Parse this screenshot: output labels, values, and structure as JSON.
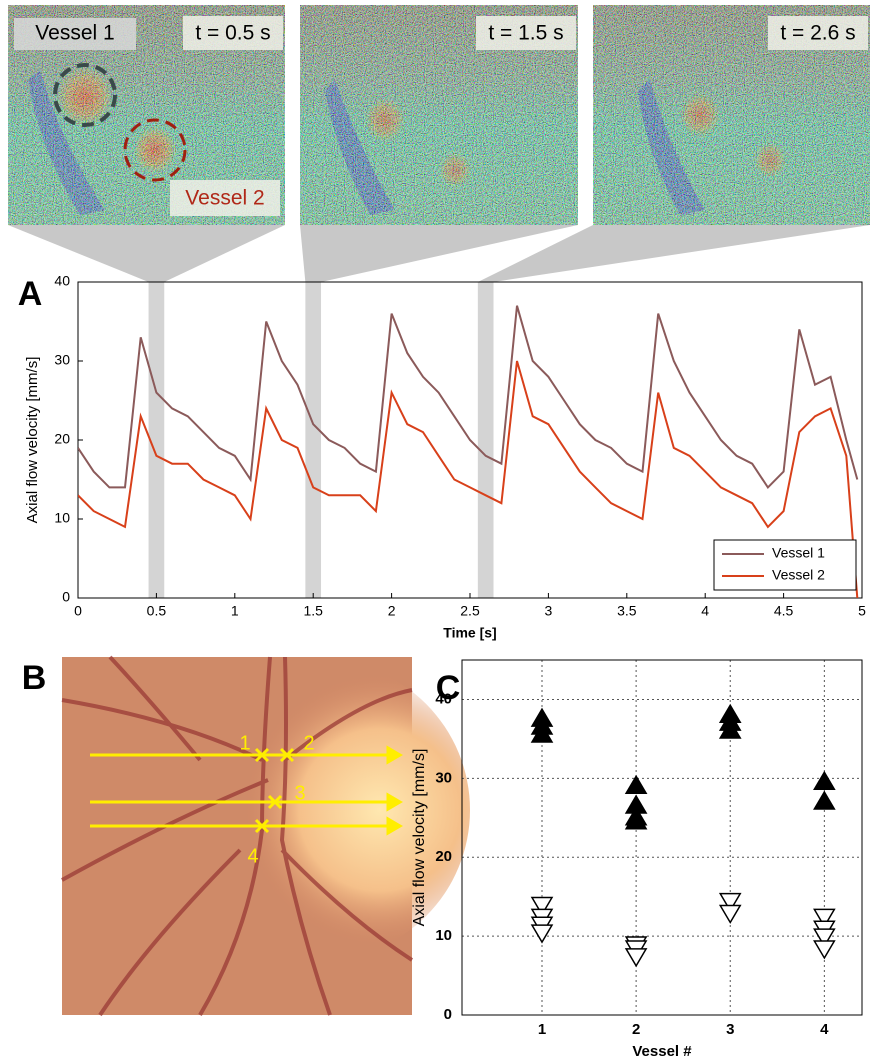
{
  "panel_labels": [
    "A",
    "B",
    "C"
  ],
  "thumbnails": {
    "time_labels": [
      "t = 0.5 s",
      "t = 1.5 s",
      "t = 2.6 s"
    ],
    "vessel_labels": [
      "Vessel 1",
      "Vessel 2"
    ]
  },
  "fundus": {
    "markers": [
      "1",
      "2",
      "3",
      "4"
    ]
  },
  "chart_data": [
    {
      "type": "line",
      "xlabel": "Time [s]",
      "ylabel": "Axial flow velocity [mm/s]",
      "x": [
        0,
        0.1,
        0.2,
        0.3,
        0.4,
        0.5,
        0.6,
        0.7,
        0.8,
        0.9,
        1.0,
        1.1,
        1.2,
        1.3,
        1.4,
        1.5,
        1.6,
        1.7,
        1.8,
        1.9,
        2.0,
        2.1,
        2.2,
        2.3,
        2.4,
        2.5,
        2.6,
        2.7,
        2.8,
        2.9,
        3.0,
        3.1,
        3.2,
        3.3,
        3.4,
        3.5,
        3.6,
        3.7,
        3.8,
        3.9,
        4.0,
        4.1,
        4.2,
        4.3,
        4.4,
        4.5,
        4.6,
        4.7,
        4.8,
        4.9,
        4.97
      ],
      "series": [
        {
          "name": "Vessel 1",
          "color": "#8b5a5a",
          "values": [
            19,
            16,
            14,
            14,
            33,
            26,
            24,
            23,
            21,
            19,
            18,
            15,
            35,
            30,
            27,
            22,
            20,
            19,
            17,
            16,
            36,
            31,
            28,
            26,
            23,
            20,
            18,
            17,
            37,
            30,
            28,
            25,
            22,
            20,
            19,
            17,
            16,
            36,
            30,
            26,
            23,
            20,
            18,
            17,
            14,
            16,
            34,
            27,
            28,
            20,
            15
          ]
        },
        {
          "name": "Vessel 2",
          "color": "#d8401a",
          "values": [
            13,
            11,
            10,
            9,
            23,
            18,
            17,
            17,
            15,
            14,
            13,
            10,
            24,
            20,
            19,
            14,
            13,
            13,
            13,
            11,
            26,
            22,
            21,
            18,
            15,
            14,
            13,
            12,
            30,
            23,
            22,
            19,
            16,
            14,
            12,
            11,
            10,
            26,
            19,
            18,
            16,
            14,
            13,
            12,
            9,
            11,
            21,
            23,
            24,
            18,
            0
          ]
        }
      ],
      "highlights": [
        0.5,
        1.5,
        2.6
      ],
      "highlight_width": 0.1,
      "xlim": [
        0,
        5
      ],
      "xticks": [
        0,
        0.5,
        1,
        1.5,
        2,
        2.5,
        3,
        3.5,
        4,
        4.5,
        5
      ],
      "ylim": [
        0,
        40
      ],
      "yticks": [
        0,
        10,
        20,
        30,
        40
      ],
      "legend": "lower-right"
    },
    {
      "type": "scatter",
      "xlabel": "Vessel #",
      "ylabel": "Axial flow velocity [mm/s]",
      "series": [
        {
          "marker": "up",
          "color": "#000000",
          "x": [
            1,
            1,
            1,
            2,
            2,
            2,
            2,
            3,
            3,
            3,
            4,
            4
          ],
          "values": [
            37.5,
            36.5,
            35.5,
            29,
            26.5,
            25,
            24.5,
            38,
            37,
            36,
            29.5,
            27
          ]
        },
        {
          "marker": "down",
          "color": "#ffffff",
          "x": [
            1,
            1,
            1,
            1,
            2,
            2,
            2,
            3,
            3,
            4,
            4,
            4,
            4
          ],
          "values": [
            14,
            12.5,
            11.5,
            10.5,
            9,
            8.5,
            7.5,
            14.5,
            13,
            12.5,
            11,
            10,
            8.5
          ]
        }
      ],
      "xlim": [
        0.15,
        4.4
      ],
      "xticks": [
        1,
        2,
        3,
        4
      ],
      "ylim": [
        0,
        45
      ],
      "yticks": [
        0,
        10,
        20,
        30,
        40
      ],
      "grid": true
    }
  ]
}
